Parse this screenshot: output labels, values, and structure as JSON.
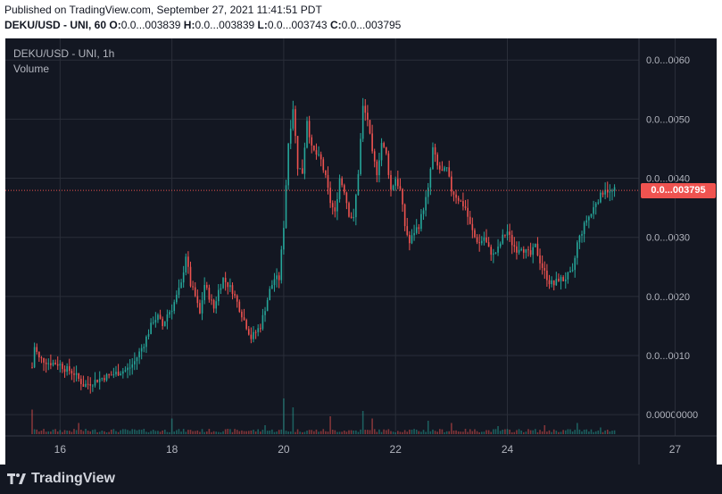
{
  "header": {
    "published": "Published on TradingView.com, September 27, 2021 11:41:51 PDT",
    "symbol_line": "DEKU/USD - UNI, 60",
    "o_label": "O:",
    "o_value": "0.0...003839",
    "h_label": "H:",
    "h_value": "0.0...003839",
    "l_label": "L:",
    "l_value": "0.0...003743",
    "c_label": "C:",
    "c_value": "0.0...003795"
  },
  "legend": {
    "symbol": "DEKU/USD - UNI, 1h",
    "volume": "Volume"
  },
  "last_price": "0.0...003795",
  "footer": {
    "brand": "TradingView"
  },
  "colors": {
    "background": "#131722",
    "up": "#26a69a",
    "down": "#ef5350",
    "grid": "#2a2e39",
    "text": "#b2b5be"
  },
  "chart_data": {
    "type": "candlestick",
    "price_unit": "x1e-7 (labels shown as 0.0...00NN)",
    "y_tick_labels": [
      "0.0...0060",
      "0.0...0050",
      "0.0...0040",
      "0.0...0030",
      "0.0...0020",
      "0.0...0010",
      "0.00000000"
    ],
    "y_tick_values": [
      60,
      50,
      40,
      30,
      20,
      10,
      0
    ],
    "x_tick_labels": [
      "16",
      "18",
      "20",
      "22",
      "24",
      "27"
    ],
    "x_tick_hours": [
      12,
      60,
      108,
      156,
      204,
      276
    ],
    "last_price_value": 37.95,
    "close_series": [
      [
        0,
        8
      ],
      [
        1,
        11.5
      ],
      [
        2,
        10.5
      ],
      [
        3,
        9.5
      ],
      [
        5,
        9.2
      ],
      [
        7,
        8.8
      ],
      [
        10,
        8.7
      ],
      [
        12,
        8.5
      ],
      [
        14,
        7.8
      ],
      [
        16,
        7.5
      ],
      [
        18,
        7
      ],
      [
        20,
        6
      ],
      [
        22,
        5
      ],
      [
        24,
        5.2
      ],
      [
        26,
        5.5
      ],
      [
        28,
        5.9
      ],
      [
        30,
        6.2
      ],
      [
        33,
        6.6
      ],
      [
        36,
        7
      ],
      [
        38,
        7.3
      ],
      [
        40,
        7.5
      ],
      [
        42,
        8
      ],
      [
        44,
        9
      ],
      [
        46,
        10.5
      ],
      [
        48,
        12
      ],
      [
        50,
        14
      ],
      [
        52,
        16
      ],
      [
        54,
        16.5
      ],
      [
        56,
        15
      ],
      [
        58,
        17
      ],
      [
        60,
        18
      ],
      [
        62,
        20
      ],
      [
        64,
        22
      ],
      [
        66,
        27
      ],
      [
        68,
        22
      ],
      [
        70,
        20
      ],
      [
        72,
        17
      ],
      [
        74,
        22
      ],
      [
        76,
        20
      ],
      [
        78,
        18
      ],
      [
        80,
        21
      ],
      [
        82,
        23
      ],
      [
        84,
        22
      ],
      [
        86,
        21
      ],
      [
        88,
        19
      ],
      [
        90,
        17
      ],
      [
        92,
        15
      ],
      [
        94,
        13
      ],
      [
        96,
        14
      ],
      [
        98,
        15
      ],
      [
        100,
        18
      ],
      [
        102,
        21
      ],
      [
        104,
        23
      ],
      [
        106,
        23
      ],
      [
        108,
        32
      ],
      [
        110,
        46
      ],
      [
        112,
        52
      ],
      [
        114,
        42
      ],
      [
        116,
        41
      ],
      [
        118,
        50
      ],
      [
        120,
        45
      ],
      [
        122,
        44
      ],
      [
        124,
        43
      ],
      [
        126,
        40
      ],
      [
        128,
        36
      ],
      [
        130,
        34
      ],
      [
        132,
        40
      ],
      [
        134,
        38
      ],
      [
        136,
        34
      ],
      [
        138,
        33
      ],
      [
        140,
        41
      ],
      [
        142,
        52
      ],
      [
        144,
        50
      ],
      [
        146,
        44
      ],
      [
        148,
        41
      ],
      [
        150,
        46
      ],
      [
        152,
        44
      ],
      [
        154,
        38
      ],
      [
        156,
        40
      ],
      [
        158,
        38
      ],
      [
        160,
        32
      ],
      [
        162,
        29
      ],
      [
        164,
        31
      ],
      [
        166,
        32
      ],
      [
        168,
        35
      ],
      [
        170,
        38
      ],
      [
        172,
        45
      ],
      [
        174,
        42
      ],
      [
        176,
        41
      ],
      [
        178,
        41.5
      ],
      [
        180,
        38
      ],
      [
        182,
        37
      ],
      [
        184,
        36
      ],
      [
        186,
        35
      ],
      [
        188,
        32
      ],
      [
        190,
        30
      ],
      [
        192,
        29
      ],
      [
        194,
        30
      ],
      [
        196,
        28
      ],
      [
        198,
        27
      ],
      [
        200,
        28
      ],
      [
        202,
        30
      ],
      [
        204,
        31
      ],
      [
        206,
        29
      ],
      [
        208,
        28
      ],
      [
        210,
        28.5
      ],
      [
        212,
        27.5
      ],
      [
        214,
        27
      ],
      [
        216,
        28.5
      ],
      [
        218,
        26
      ],
      [
        220,
        24
      ],
      [
        222,
        22.5
      ],
      [
        224,
        22
      ],
      [
        226,
        23
      ],
      [
        228,
        22.8
      ],
      [
        230,
        23.5
      ],
      [
        232,
        24
      ],
      [
        234,
        29
      ],
      [
        236,
        31
      ],
      [
        238,
        33
      ],
      [
        240,
        34
      ],
      [
        242,
        36
      ],
      [
        244,
        37
      ],
      [
        246,
        38.4
      ],
      [
        248,
        37.5
      ],
      [
        250,
        37.95
      ]
    ],
    "volume_spikes": [
      [
        0,
        55
      ],
      [
        20,
        25
      ],
      [
        60,
        35
      ],
      [
        100,
        20
      ],
      [
        108,
        80
      ],
      [
        112,
        60
      ],
      [
        128,
        40
      ],
      [
        142,
        52
      ],
      [
        146,
        35
      ],
      [
        170,
        30
      ],
      [
        180,
        25
      ],
      [
        200,
        18
      ],
      [
        220,
        20
      ],
      [
        234,
        25
      ],
      [
        244,
        15
      ]
    ]
  }
}
